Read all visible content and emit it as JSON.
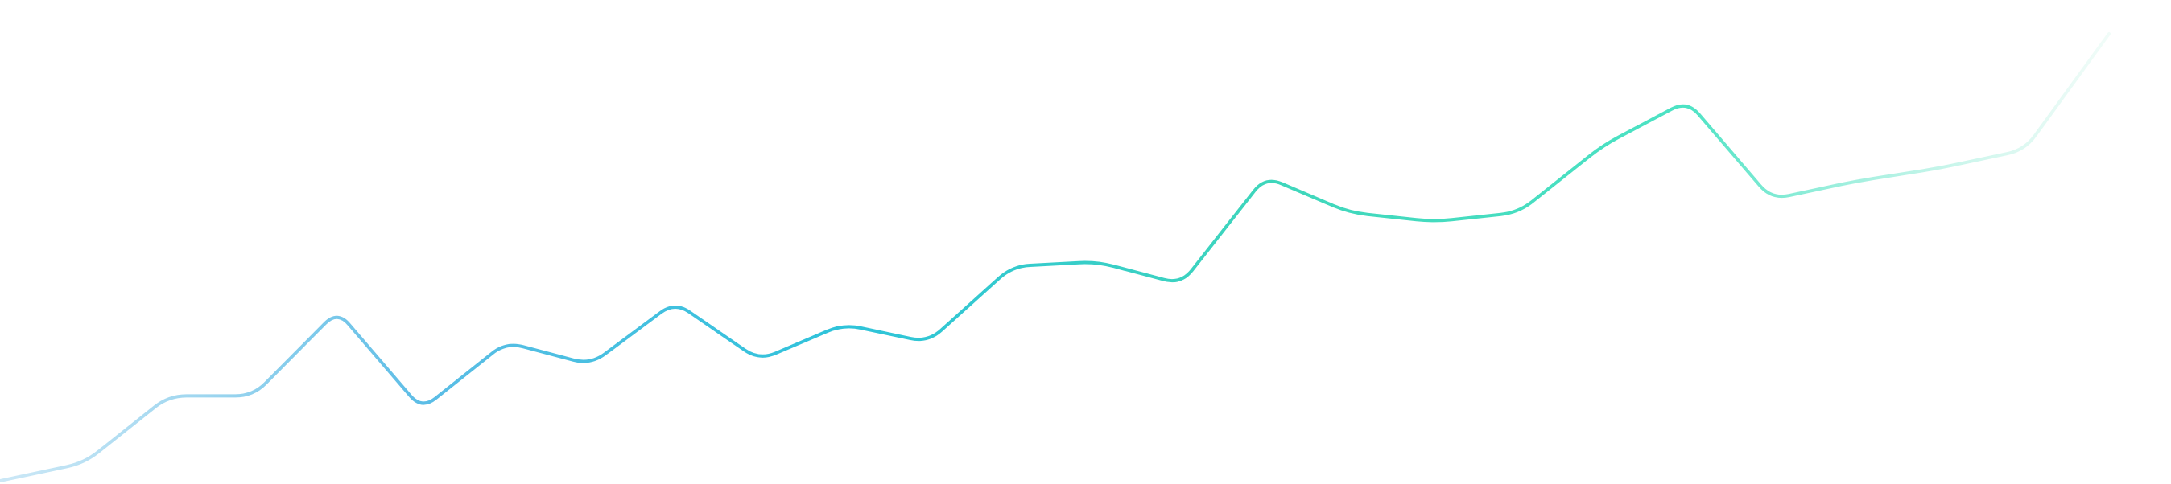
{
  "chart_data": {
    "type": "line",
    "curve": "smooth-corners",
    "title": "",
    "xlabel": "",
    "ylabel": "",
    "axes_visible": false,
    "grid": false,
    "legend": "none",
    "x": [
      0,
      1,
      2,
      3,
      4,
      5,
      6,
      7,
      8,
      9,
      10,
      11,
      12,
      13,
      14,
      15,
      16,
      17,
      18,
      19,
      20,
      21,
      22,
      23,
      24,
      25
    ],
    "xlim": [
      0,
      25
    ],
    "ylim": [
      0,
      100
    ],
    "series": [
      {
        "values": [
          0,
          4,
          19,
          19,
          38,
          16,
          31,
          26,
          40,
          27,
          35,
          31,
          48,
          49,
          44,
          68,
          60,
          58,
          60,
          75,
          85,
          63,
          67,
          70,
          74,
          100
        ],
        "gradient": [
          "#a9d8f0",
          "#5cbde6",
          "#2ec3da",
          "#3ed6bb",
          "#4de3c4",
          "#d6f6ec"
        ]
      }
    ]
  }
}
